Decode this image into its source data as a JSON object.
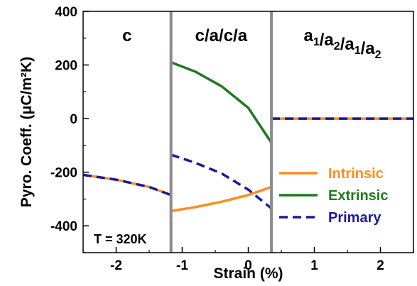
{
  "chart_data": {
    "type": "line",
    "xlabel": "Strain (%)",
    "ylabel": "Pyro. Coeff. (μC/m²K)",
    "xlim": [
      -2.5,
      2.5
    ],
    "ylim": [
      -500,
      400
    ],
    "x_ticks": [
      -2,
      -1,
      0,
      1,
      2
    ],
    "x_tick_labels": [
      "-2",
      "-1",
      "0",
      "1",
      "2"
    ],
    "y_ticks": [
      400,
      200,
      0,
      -200,
      -400
    ],
    "y_tick_labels": [
      "400",
      "200",
      "0",
      "-200",
      "-400"
    ],
    "grid": false,
    "legend_position": "bottom-right",
    "phase_boundaries": [
      -1.17,
      0.35
    ],
    "regions": [
      {
        "label": "c",
        "x": [
          -2.5,
          -1.17
        ]
      },
      {
        "label": "c/a/c/a",
        "x": [
          -1.17,
          0.35
        ]
      },
      {
        "label_main": "a",
        "label_subs": [
          "1",
          "2",
          "1",
          "2"
        ],
        "x": [
          0.35,
          2.5
        ]
      }
    ],
    "annotation": "T = 320K",
    "series": [
      {
        "name": "Intrinsic",
        "color": "#ff8c1a",
        "style": "solid",
        "segments": [
          {
            "x": [
              -2.5,
              -2.0,
              -1.5,
              -1.17
            ],
            "y": [
              -210,
              -228,
              -255,
              -285
            ]
          },
          {
            "x": [
              -1.17,
              -0.8,
              -0.4,
              0.0,
              0.35
            ],
            "y": [
              -345,
              -330,
              -310,
              -285,
              -255
            ]
          },
          {
            "x": [
              0.35,
              1.0,
              2.0,
              2.5
            ],
            "y": [
              0,
              0,
              0,
              0
            ]
          }
        ]
      },
      {
        "name": "Extrinsic",
        "color": "#1e7a1e",
        "style": "solid",
        "segments": [
          {
            "x": [
              -1.17,
              -0.8,
              -0.4,
              0.0,
              0.35
            ],
            "y": [
              210,
              175,
              120,
              40,
              -90
            ]
          }
        ]
      },
      {
        "name": "Primary",
        "color": "#1a1a9c",
        "style": "dashed",
        "segments": [
          {
            "x": [
              -2.5,
              -2.0,
              -1.5,
              -1.17
            ],
            "y": [
              -210,
              -228,
              -255,
              -285
            ]
          },
          {
            "x": [
              -1.17,
              -0.8,
              -0.4,
              0.0,
              0.35
            ],
            "y": [
              -135,
              -165,
              -205,
              -265,
              -335
            ]
          },
          {
            "x": [
              0.35,
              1.0,
              2.0,
              2.5
            ],
            "y": [
              0,
              0,
              0,
              0
            ]
          }
        ]
      }
    ]
  }
}
